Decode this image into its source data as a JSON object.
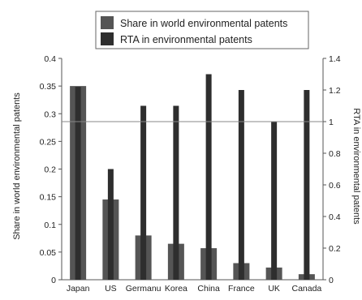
{
  "chart_data": {
    "type": "bar",
    "categories": [
      "Japan",
      "US",
      "Germany",
      "Korea",
      "China",
      "France",
      "UK",
      "Canada"
    ],
    "category_display": [
      "Japan",
      "US",
      "Germanu",
      "Korea",
      "China",
      "France",
      "UK",
      "Canada"
    ],
    "series": [
      {
        "name": "Share in world environmental patents",
        "axis": "left",
        "color": "#555555",
        "values": [
          0.35,
          0.145,
          0.08,
          0.065,
          0.057,
          0.03,
          0.022,
          0.01
        ]
      },
      {
        "name": "RTA in environmental patents",
        "axis": "right",
        "color": "#2e2e2e",
        "values": [
          1.22,
          0.7,
          1.1,
          1.1,
          1.3,
          1.2,
          1.0,
          1.2
        ]
      }
    ],
    "ylabel_left": "Share in world environmental patents",
    "ylabel_right": "RTA in environmental patents",
    "ylim_left": [
      0,
      0.4
    ],
    "ylim_right": [
      0,
      1.4
    ],
    "yticks_left": [
      "0",
      "0.05",
      "0.1",
      "0.15",
      "0.2",
      "0.25",
      "0.3",
      "0.35",
      "0.4"
    ],
    "yticks_right": [
      "0",
      "0.2",
      "0.4",
      "0.6",
      "0.8",
      "1",
      "1.2",
      "1.4"
    ],
    "reference_line_right": 1.0,
    "legend_position": "top-center",
    "grid": false
  }
}
